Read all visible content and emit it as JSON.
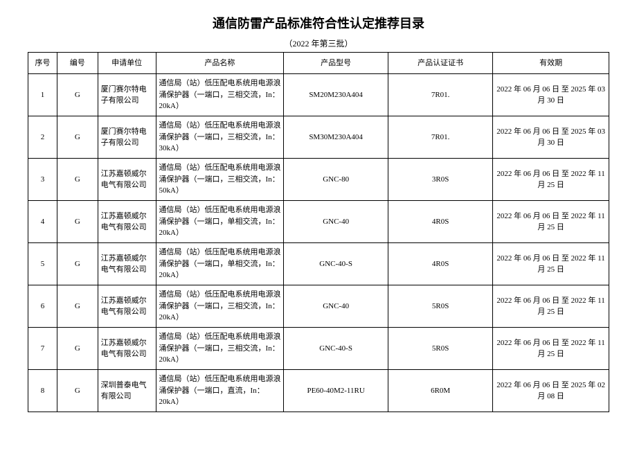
{
  "title": "通信防雷产品标准符合性认定推荐目录",
  "subtitle": "（2022 年第三批）",
  "headers": {
    "seq": "序号",
    "code": "编号",
    "applicant": "申请单位",
    "product_name": "产品名称",
    "model": "产品型号",
    "cert": "产品认证证书",
    "validity": "有效期"
  },
  "rows": [
    {
      "seq": "1",
      "code": "G",
      "applicant": "厦门赛尔特电子有限公司",
      "product_name": "通信局（站）低压配电系统用电源浪涌保护器（一端口，三相交流，In：20kA）",
      "model": "SM20M230A404",
      "cert": "7R01.",
      "validity": "2022 年 06 月 06 日 至  2025 年 03 月 30 日"
    },
    {
      "seq": "2",
      "code": "G",
      "applicant": "厦门赛尔特电子有限公司",
      "product_name": "通信局（站）低压配电系统用电源浪涌保护器（一端口，三相交流，In：30kA）",
      "model": "SM30M230A404",
      "cert": "7R01.",
      "validity": "2022 年 06 月 06 日 至  2025 年 03 月 30 日"
    },
    {
      "seq": "3",
      "code": "G",
      "applicant": "江苏嘉顿威尔电气有限公司",
      "product_name": "通信局（站）低压配电系统用电源浪涌保护器（一端口，三相交流，In：50kA）",
      "model": "GNC-80",
      "cert": "3R0S",
      "validity": "2022 年 06 月 06 日 至  2022 年 11 月 25 日"
    },
    {
      "seq": "4",
      "code": "G",
      "applicant": "江苏嘉顿威尔电气有限公司",
      "product_name": "通信局（站）低压配电系统用电源浪涌保护器（一端口，单相交流，In：20kA）",
      "model": "GNC-40",
      "cert": "4R0S",
      "validity": "2022 年 06 月 06 日 至  2022 年 11 月 25 日"
    },
    {
      "seq": "5",
      "code": "G",
      "applicant": "江苏嘉顿威尔电气有限公司",
      "product_name": "通信局（站）低压配电系统用电源浪涌保护器（一端口，单相交流，In：20kA）",
      "model": "GNC-40-S",
      "cert": "4R0S",
      "validity": "2022 年 06 月 06 日 至  2022 年 11 月 25 日"
    },
    {
      "seq": "6",
      "code": "G",
      "applicant": "江苏嘉顿威尔电气有限公司",
      "product_name": "通信局（站）低压配电系统用电源浪涌保护器（一端口，三相交流，In：20kA）",
      "model": "GNC-40",
      "cert": "5R0S",
      "validity": "2022 年 06 月 06 日 至  2022 年 11 月 25 日"
    },
    {
      "seq": "7",
      "code": "G",
      "applicant": "江苏嘉顿威尔电气有限公司",
      "product_name": "通信局（站）低压配电系统用电源浪涌保护器（一端口，三相交流，In：20kA）",
      "model": "GNC-40-S",
      "cert": "5R0S",
      "validity": "2022 年 06 月 06 日 至  2022 年 11 月 25 日"
    },
    {
      "seq": "8",
      "code": "G",
      "applicant": "深圳普泰电气有限公司",
      "product_name": "通信局（站）低压配电系统用电源浪涌保护器（一端口，直流，In：20kA）",
      "model": "PE60-40M2-11RU",
      "cert": "6R0M",
      "validity": "2022 年 06 月 06 日 至  2025 年 02 月 08 日"
    }
  ]
}
